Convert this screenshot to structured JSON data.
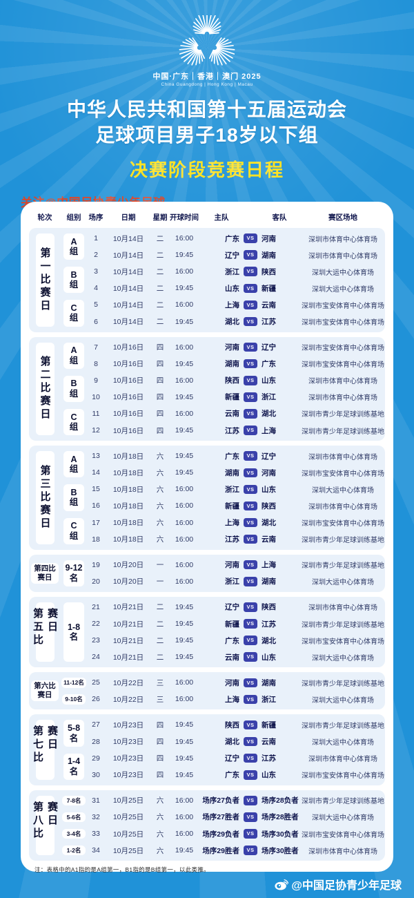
{
  "logo": {
    "line1": "中国·广东｜香港｜澳门 2025",
    "line2": "China Guangdong | Hong Kong | Macau"
  },
  "header": {
    "title_line1": "中华人民共和国第十五届运动会",
    "title_line2": "足球项目男子18岁以下组",
    "subtitle": "决赛阶段竞赛日程",
    "follow": "关注@中国足协青少年足球"
  },
  "table": {
    "columns": [
      "轮次",
      "组别",
      "场序",
      "日期",
      "星期",
      "开球时间",
      "主队",
      "客队",
      "赛区场地"
    ],
    "vs_label": "VS"
  },
  "sections": [
    {
      "round": "第一比赛日",
      "groups": [
        {
          "label": "A组",
          "matches": [
            {
              "no": "1",
              "date": "10月14日",
              "weekday": "二",
              "time": "16:00",
              "home": "广东",
              "away": "河南",
              "venue": "深圳市体育中心体育场"
            },
            {
              "no": "2",
              "date": "10月14日",
              "weekday": "二",
              "time": "19:45",
              "home": "辽宁",
              "away": "湖南",
              "venue": "深圳市体育中心体育场"
            }
          ]
        },
        {
          "label": "B组",
          "matches": [
            {
              "no": "3",
              "date": "10月14日",
              "weekday": "二",
              "time": "16:00",
              "home": "浙江",
              "away": "陕西",
              "venue": "深圳大运中心体育场"
            },
            {
              "no": "4",
              "date": "10月14日",
              "weekday": "二",
              "time": "19:45",
              "home": "山东",
              "away": "新疆",
              "venue": "深圳大运中心体育场"
            }
          ]
        },
        {
          "label": "C组",
          "matches": [
            {
              "no": "5",
              "date": "10月14日",
              "weekday": "二",
              "time": "16:00",
              "home": "上海",
              "away": "云南",
              "venue": "深圳市宝安体育中心体育场"
            },
            {
              "no": "6",
              "date": "10月14日",
              "weekday": "二",
              "time": "19:45",
              "home": "湖北",
              "away": "江苏",
              "venue": "深圳市宝安体育中心体育场"
            }
          ]
        }
      ]
    },
    {
      "round": "第二比赛日",
      "groups": [
        {
          "label": "A组",
          "matches": [
            {
              "no": "7",
              "date": "10月16日",
              "weekday": "四",
              "time": "16:00",
              "home": "河南",
              "away": "辽宁",
              "venue": "深圳市宝安体育中心体育场"
            },
            {
              "no": "8",
              "date": "10月16日",
              "weekday": "四",
              "time": "19:45",
              "home": "湖南",
              "away": "广东",
              "venue": "深圳市宝安体育中心体育场"
            }
          ]
        },
        {
          "label": "B组",
          "matches": [
            {
              "no": "9",
              "date": "10月16日",
              "weekday": "四",
              "time": "16:00",
              "home": "陕西",
              "away": "山东",
              "venue": "深圳市体育中心体育场"
            },
            {
              "no": "10",
              "date": "10月16日",
              "weekday": "四",
              "time": "19:45",
              "home": "新疆",
              "away": "浙江",
              "venue": "深圳市体育中心体育场"
            }
          ]
        },
        {
          "label": "C组",
          "matches": [
            {
              "no": "11",
              "date": "10月16日",
              "weekday": "四",
              "time": "16:00",
              "home": "云南",
              "away": "湖北",
              "venue": "深圳市青少年足球训练基地"
            },
            {
              "no": "12",
              "date": "10月16日",
              "weekday": "四",
              "time": "19:45",
              "home": "江苏",
              "away": "上海",
              "venue": "深圳市青少年足球训练基地"
            }
          ]
        }
      ]
    },
    {
      "round": "第三比赛日",
      "groups": [
        {
          "label": "A组",
          "matches": [
            {
              "no": "13",
              "date": "10月18日",
              "weekday": "六",
              "time": "19:45",
              "home": "广东",
              "away": "辽宁",
              "venue": "深圳市体育中心体育场"
            },
            {
              "no": "14",
              "date": "10月18日",
              "weekday": "六",
              "time": "19:45",
              "home": "湖南",
              "away": "河南",
              "venue": "深圳市宝安体育中心体育场"
            }
          ]
        },
        {
          "label": "B组",
          "matches": [
            {
              "no": "15",
              "date": "10月18日",
              "weekday": "六",
              "time": "16:00",
              "home": "浙江",
              "away": "山东",
              "venue": "深圳大运中心体育场"
            },
            {
              "no": "16",
              "date": "10月18日",
              "weekday": "六",
              "time": "16:00",
              "home": "新疆",
              "away": "陕西",
              "venue": "深圳市体育中心体育场"
            }
          ]
        },
        {
          "label": "C组",
          "matches": [
            {
              "no": "17",
              "date": "10月18日",
              "weekday": "六",
              "time": "16:00",
              "home": "上海",
              "away": "湖北",
              "venue": "深圳市宝安体育中心体育场"
            },
            {
              "no": "18",
              "date": "10月18日",
              "weekday": "六",
              "time": "16:00",
              "home": "江苏",
              "away": "云南",
              "venue": "深圳市青少年足球训练基地"
            }
          ]
        }
      ]
    },
    {
      "round": "第四比赛日",
      "groups": [
        {
          "label": "9-12名",
          "matches": [
            {
              "no": "19",
              "date": "10月20日",
              "weekday": "一",
              "time": "16:00",
              "home": "河南",
              "away": "上海",
              "venue": "深圳市青少年足球训练基地"
            },
            {
              "no": "20",
              "date": "10月20日",
              "weekday": "一",
              "time": "16:00",
              "home": "浙江",
              "away": "湖南",
              "venue": "深圳大运中心体育场"
            }
          ]
        }
      ]
    },
    {
      "round": "第五比赛日",
      "groups": [
        {
          "label": "1-8名",
          "matches": [
            {
              "no": "21",
              "date": "10月21日",
              "weekday": "二",
              "time": "19:45",
              "home": "辽宁",
              "away": "陕西",
              "venue": "深圳市体育中心体育场"
            },
            {
              "no": "22",
              "date": "10月21日",
              "weekday": "二",
              "time": "19:45",
              "home": "新疆",
              "away": "江苏",
              "venue": "深圳市青少年足球训练基地"
            },
            {
              "no": "23",
              "date": "10月21日",
              "weekday": "二",
              "time": "19:45",
              "home": "广东",
              "away": "湖北",
              "venue": "深圳市宝安体育中心体育场"
            },
            {
              "no": "24",
              "date": "10月21日",
              "weekday": "二",
              "time": "19:45",
              "home": "云南",
              "away": "山东",
              "venue": "深圳大运中心体育场"
            }
          ]
        }
      ]
    },
    {
      "round": "第六比赛日",
      "groups": [
        {
          "label": "11-12名",
          "matches": [
            {
              "no": "25",
              "date": "10月22日",
              "weekday": "三",
              "time": "16:00",
              "home": "河南",
              "away": "湖南",
              "venue": "深圳市青少年足球训练基地"
            }
          ]
        },
        {
          "label": "9-10名",
          "matches": [
            {
              "no": "26",
              "date": "10月22日",
              "weekday": "三",
              "time": "16:00",
              "home": "上海",
              "away": "浙江",
              "venue": "深圳大运中心体育场"
            }
          ]
        }
      ]
    },
    {
      "round": "第七比赛日",
      "groups": [
        {
          "label": "5-8名",
          "matches": [
            {
              "no": "27",
              "date": "10月23日",
              "weekday": "四",
              "time": "19:45",
              "home": "陕西",
              "away": "新疆",
              "venue": "深圳市青少年足球训练基地"
            },
            {
              "no": "28",
              "date": "10月23日",
              "weekday": "四",
              "time": "19:45",
              "home": "湖北",
              "away": "云南",
              "venue": "深圳大运中心体育场"
            }
          ]
        },
        {
          "label": "1-4名",
          "matches": [
            {
              "no": "29",
              "date": "10月23日",
              "weekday": "四",
              "time": "19:45",
              "home": "辽宁",
              "away": "江苏",
              "venue": "深圳市体育中心体育场"
            },
            {
              "no": "30",
              "date": "10月23日",
              "weekday": "四",
              "time": "19:45",
              "home": "广东",
              "away": "山东",
              "venue": "深圳市宝安体育中心体育场"
            }
          ]
        }
      ]
    },
    {
      "round": "第八比赛日",
      "groups": [
        {
          "label": "7-8名",
          "matches": [
            {
              "no": "31",
              "date": "10月25日",
              "weekday": "六",
              "time": "16:00",
              "home": "场序27负者",
              "away": "场序28负者",
              "venue": "深圳市青少年足球训练基地"
            }
          ]
        },
        {
          "label": "5-6名",
          "matches": [
            {
              "no": "32",
              "date": "10月25日",
              "weekday": "六",
              "time": "16:00",
              "home": "场序27胜者",
              "away": "场序28胜者",
              "venue": "深圳大运中心体育场"
            }
          ]
        },
        {
          "label": "3-4名",
          "matches": [
            {
              "no": "33",
              "date": "10月25日",
              "weekday": "六",
              "time": "16:00",
              "home": "场序29负者",
              "away": "场序30负者",
              "venue": "深圳市宝安体育中心体育场"
            }
          ]
        },
        {
          "label": "1-2名",
          "matches": [
            {
              "no": "34",
              "date": "10月25日",
              "weekday": "六",
              "time": "19:45",
              "home": "场序29胜者",
              "away": "场序30胜者",
              "venue": "深圳市体育中心体育场"
            }
          ]
        }
      ]
    }
  ],
  "note": "注：表格中的A1指的是A组第一，B1指的是B组第一，以此类推。",
  "footer": {
    "handle": "@中国足协青少年足球"
  },
  "colors": {
    "background_blue": "#2092d8",
    "subtitle_yellow": "#ffe11a",
    "follow_red": "#d9472b",
    "section_bg": "#e9f1fa",
    "vs_badge": "#3a41aa",
    "dark_navy_text": "#10164d"
  }
}
